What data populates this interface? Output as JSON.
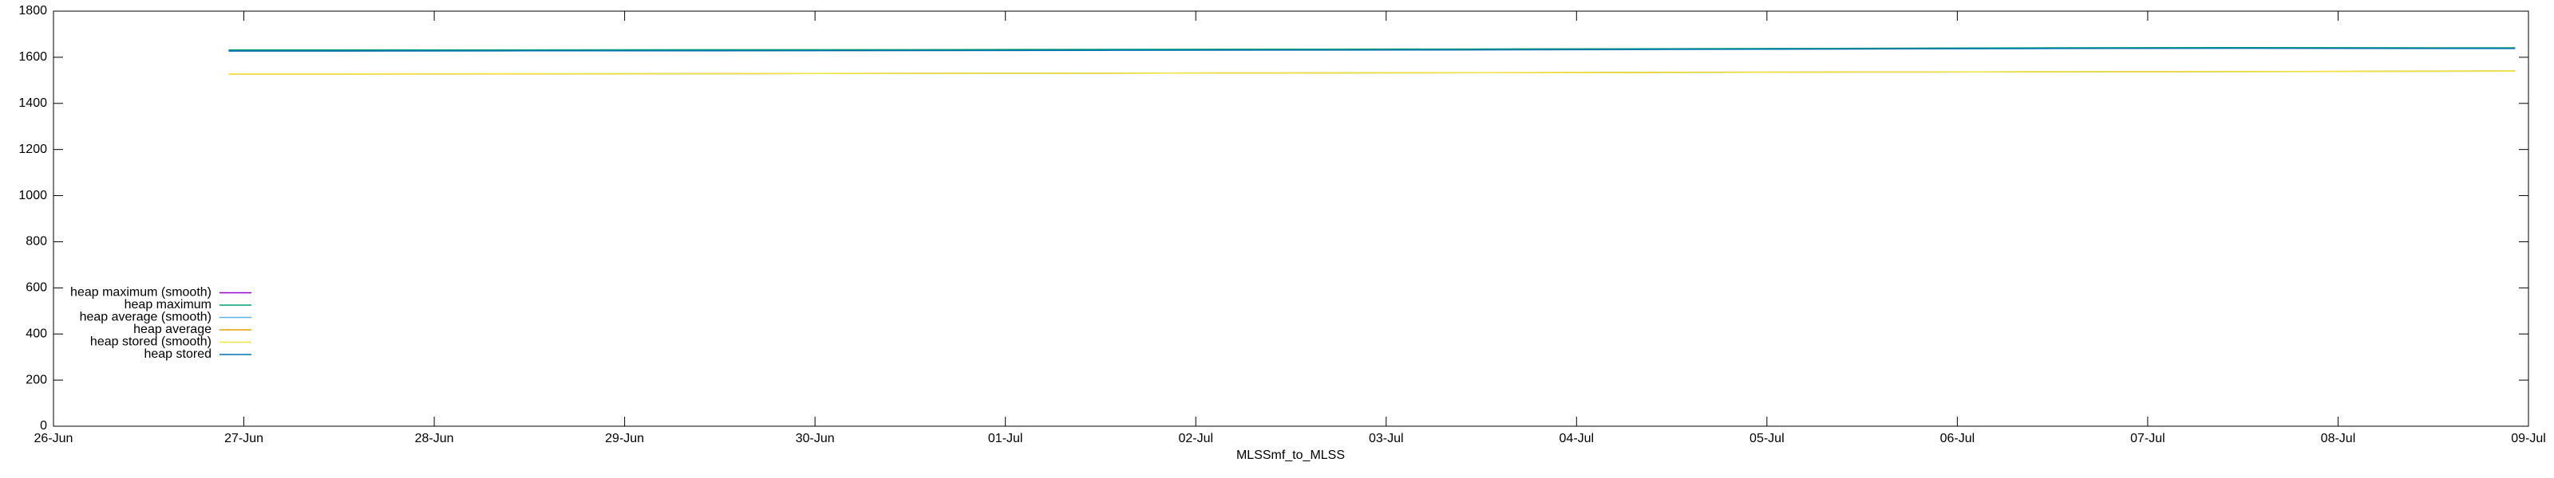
{
  "chart_data": {
    "type": "line",
    "x_label": "MLSSmf_to_MLSS",
    "x": [
      0.92,
      1.5,
      2.5,
      3.5,
      4.5,
      5.5,
      6.5,
      7.5,
      8.5,
      9.5,
      10.5,
      11.5,
      12.5,
      12.93
    ],
    "xlim": [
      0,
      13
    ],
    "xticks": [
      {
        "value": 0,
        "label": "26-Jun"
      },
      {
        "value": 1,
        "label": "27-Jun"
      },
      {
        "value": 2,
        "label": "28-Jun"
      },
      {
        "value": 3,
        "label": "29-Jun"
      },
      {
        "value": 4,
        "label": "30-Jun"
      },
      {
        "value": 5,
        "label": "01-Jul"
      },
      {
        "value": 6,
        "label": "02-Jul"
      },
      {
        "value": 7,
        "label": "03-Jul"
      },
      {
        "value": 8,
        "label": "04-Jul"
      },
      {
        "value": 9,
        "label": "05-Jul"
      },
      {
        "value": 10,
        "label": "06-Jul"
      },
      {
        "value": 11,
        "label": "07-Jul"
      },
      {
        "value": 12,
        "label": "08-Jul"
      },
      {
        "value": 13,
        "label": "09-Jul"
      }
    ],
    "ylim": [
      0,
      1800
    ],
    "yticks": [
      0,
      200,
      400,
      600,
      800,
      1000,
      1200,
      1400,
      1600,
      1800
    ],
    "grid": false,
    "legend": "bottom-left",
    "series": [
      {
        "name": "heap maximum (smooth)",
        "color": "#9400d3",
        "values": [
          1630,
          1630,
          1631,
          1631,
          1632,
          1633,
          1634,
          1635,
          1636,
          1638,
          1640,
          1641,
          1640,
          1640
        ]
      },
      {
        "name": "heap maximum",
        "color": "#009e73",
        "values": [
          1632,
          1632,
          1632,
          1633,
          1633,
          1634,
          1635,
          1636,
          1637,
          1639,
          1641,
          1642,
          1641,
          1641
        ]
      },
      {
        "name": "heap average (smooth)",
        "color": "#56b4e9",
        "values": [
          1528,
          1528,
          1528,
          1529,
          1530,
          1531,
          1532,
          1533,
          1534,
          1536,
          1537,
          1538,
          1539,
          1540
        ]
      },
      {
        "name": "heap average",
        "color": "#e69f00",
        "values": [
          1527,
          1527,
          1528,
          1529,
          1530,
          1531,
          1532,
          1533,
          1535,
          1536,
          1537,
          1538,
          1540,
          1541
        ]
      },
      {
        "name": "heap stored (smooth)",
        "color": "#f0e442",
        "values": [
          1528,
          1528,
          1529,
          1529,
          1530,
          1531,
          1532,
          1533,
          1534,
          1536,
          1537,
          1538,
          1539,
          1540
        ]
      },
      {
        "name": "heap stored",
        "color": "#0072b2",
        "values": [
          1627,
          1627,
          1628,
          1628,
          1629,
          1630,
          1631,
          1632,
          1634,
          1636,
          1638,
          1639,
          1638,
          1638
        ]
      }
    ]
  }
}
